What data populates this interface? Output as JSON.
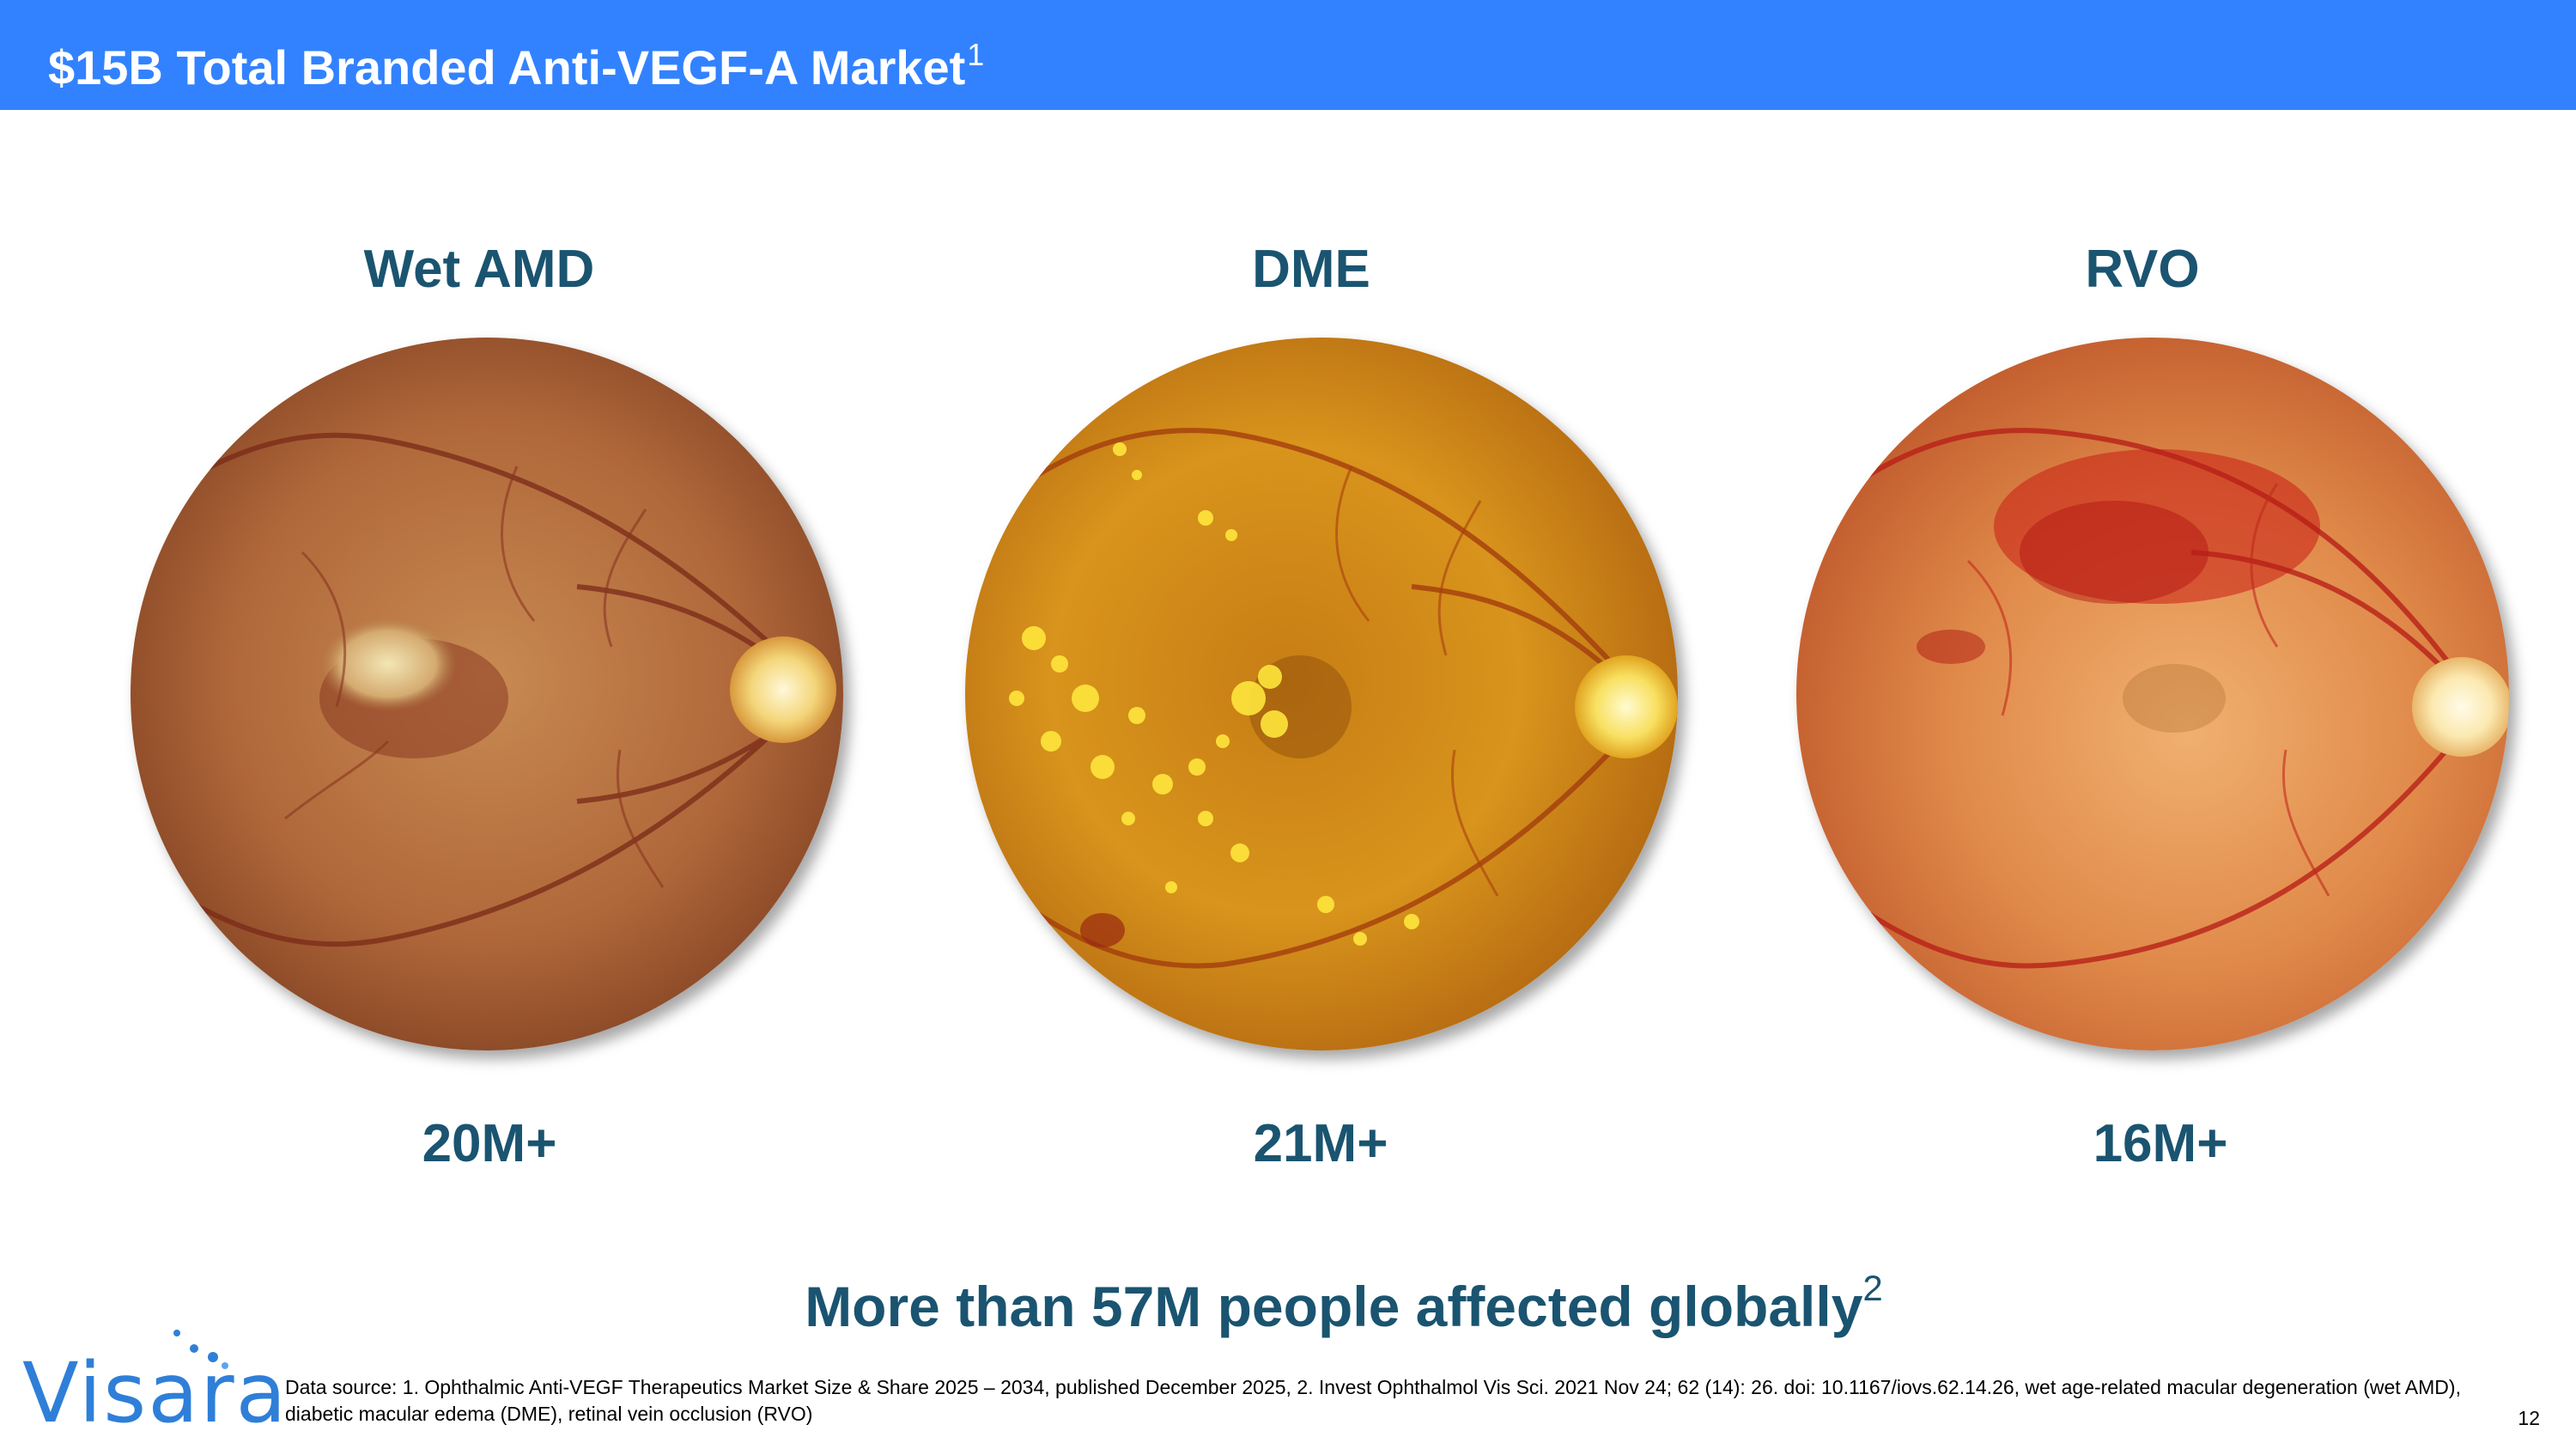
{
  "header": {
    "title": "$15B Total Branded Anti-VEGF-A Market",
    "title_sup": "1",
    "bg_color": "#3282ff"
  },
  "conditions": [
    {
      "label": "Wet AMD",
      "stat": "20M+",
      "image": "wet-amd-fundus-photo"
    },
    {
      "label": "DME",
      "stat": "21M+",
      "image": "dme-fundus-photo"
    },
    {
      "label": "RVO",
      "stat": "16M+",
      "image": "rvo-fundus-photo"
    }
  ],
  "summary": {
    "text": "More than 57M people affected globally",
    "sup": "2"
  },
  "logo": {
    "text": "Visara",
    "color": "#2f7fd8"
  },
  "footnote": "Data source: 1. Ophthalmic Anti-VEGF Therapeutics Market Size & Share 2025 – 2034, published December 2025, 2. Invest Ophthalmol Vis Sci. 2021 Nov 24; 62 (14): 26. doi: 10.1167/iovs.62.14.26, wet age-related macular degeneration (wet AMD), diabetic macular edema (DME), retinal vein occlusion (RVO)",
  "page_number": "12",
  "colors": {
    "accent_text": "#1a5470"
  }
}
